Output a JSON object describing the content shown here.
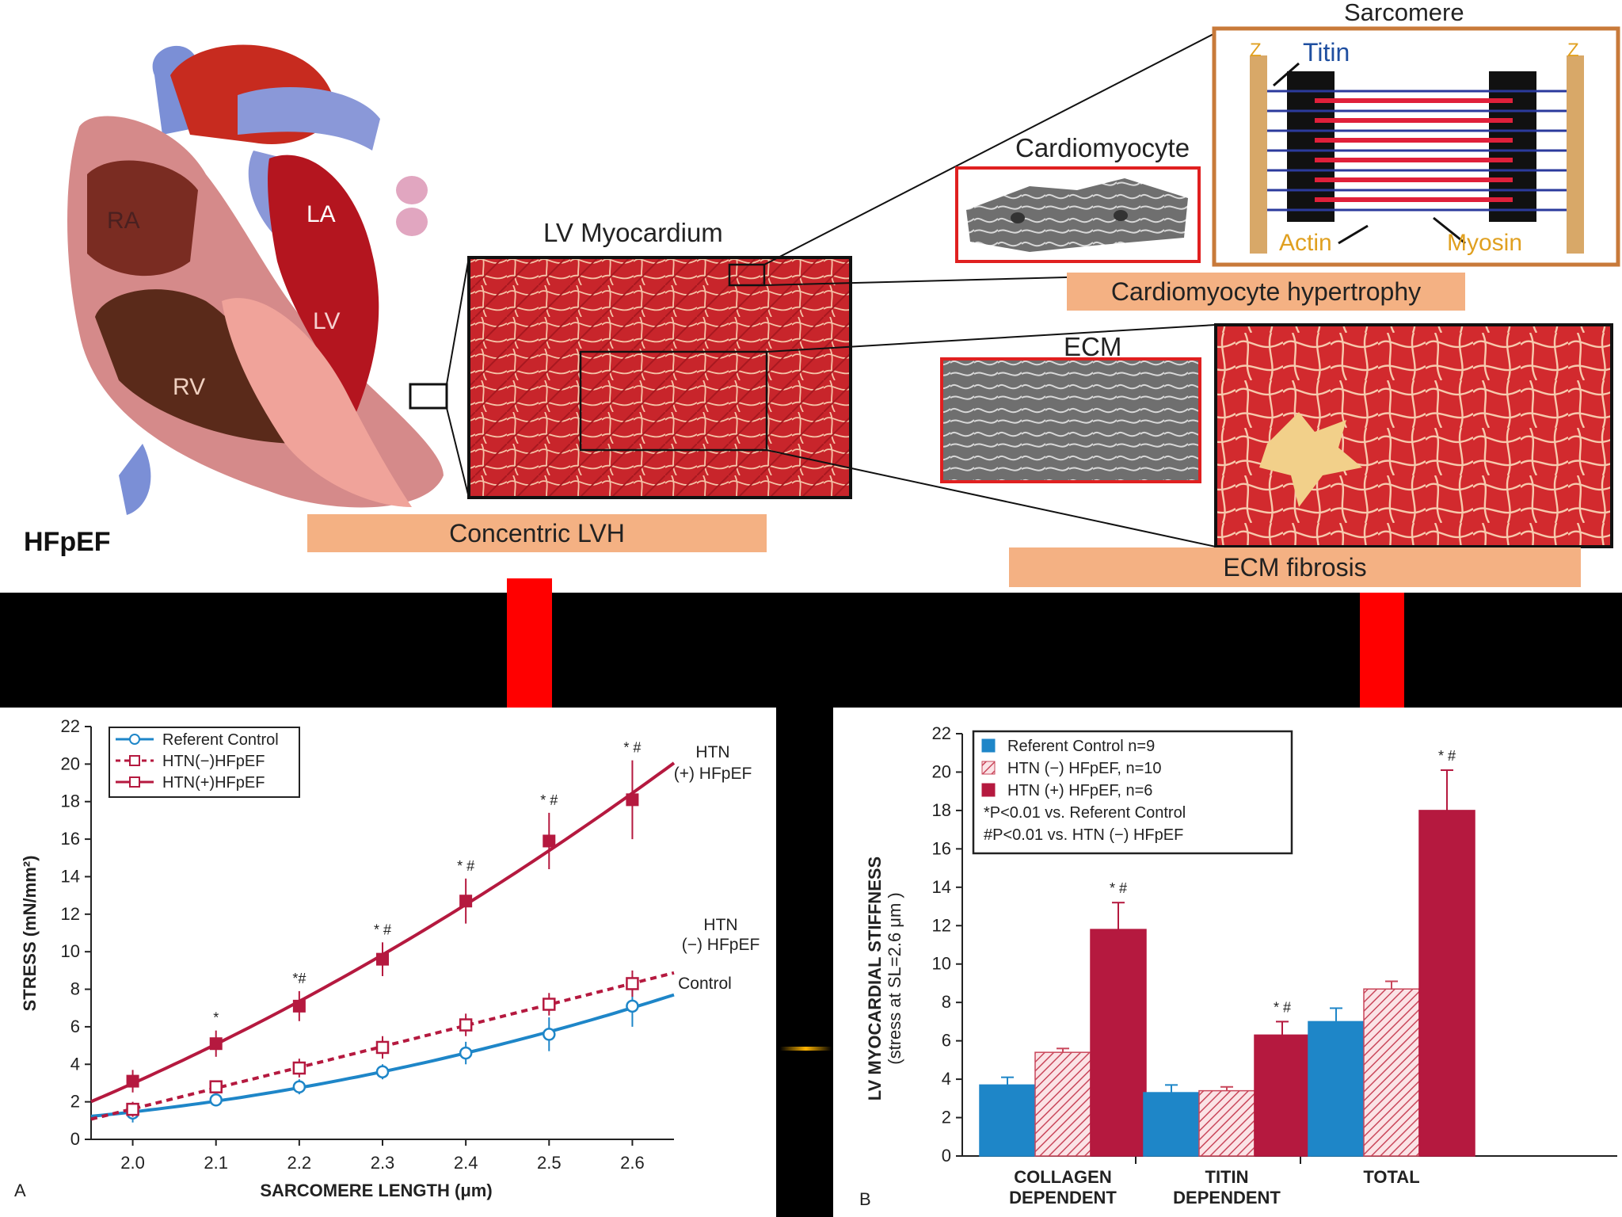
{
  "top": {
    "heart_labels": [
      "RA",
      "LA",
      "LV",
      "RV"
    ],
    "hfpef": "HFpEF",
    "lv_myocardium": "LV Myocardium",
    "concentric_lvh": "Concentric LVH",
    "cardiomyocyte": "Cardiomyocyte",
    "ecm": "ECM",
    "cardiomyocyte_hypertrophy": "Cardiomyocyte hypertrophy",
    "ecm_fibrosis": "ECM fibrosis",
    "sarcomere": "Sarcomere",
    "titin": "Titin",
    "actin": "Actin",
    "myosin": "Myosin",
    "z": "Z"
  },
  "colors": {
    "red": "#b5193f",
    "blue": "#1e86c8",
    "orange_label": "#f4b183",
    "arrow": "#ff0000"
  },
  "chart_data": [
    {
      "type": "line",
      "panel_letter": "A",
      "xlabel": "SARCOMERE LENGTH (μm)",
      "ylabel": "STRESS (mN/mm²)",
      "xlim": [
        1.95,
        2.65
      ],
      "ylim": [
        0,
        22
      ],
      "x_ticks": [
        "2.0",
        "2.1",
        "2.2",
        "2.3",
        "2.4",
        "2.5",
        "2.6"
      ],
      "y_ticks": [
        "0",
        "2",
        "4",
        "6",
        "8",
        "10",
        "12",
        "14",
        "16",
        "18",
        "20",
        "22"
      ],
      "legend": [
        "Referent Control",
        "HTN(−)HFpEF",
        "HTN(+)HFpEF"
      ],
      "legend_position": "top-left",
      "curve_labels": [
        "HTN",
        "(+) HFpEF",
        "HTN",
        "(−) HFpEF",
        "Control"
      ],
      "x": [
        2.0,
        2.1,
        2.2,
        2.3,
        2.4,
        2.5,
        2.6
      ],
      "series": [
        {
          "name": "Referent Control",
          "values": [
            1.4,
            2.1,
            2.8,
            3.6,
            4.6,
            5.6,
            7.1
          ],
          "errors": [
            0.5,
            0.3,
            0.4,
            0.4,
            0.6,
            0.9,
            1.1
          ]
        },
        {
          "name": "HTN(−)HFpEF",
          "values": [
            1.6,
            2.8,
            3.8,
            4.9,
            6.1,
            7.2,
            8.3
          ],
          "errors": [
            0.4,
            0.3,
            0.5,
            0.6,
            0.6,
            0.6,
            0.7
          ]
        },
        {
          "name": "HTN(+)HFpEF",
          "values": [
            3.1,
            5.1,
            7.1,
            9.6,
            12.7,
            15.9,
            18.1
          ],
          "errors": [
            0.6,
            0.7,
            0.8,
            0.9,
            1.2,
            1.5,
            2.1
          ]
        }
      ],
      "significance": [
        "*",
        "*#",
        "* #",
        "* #",
        "* #",
        "* #"
      ]
    },
    {
      "type": "bar",
      "panel_letter": "B",
      "ylabel": "LV MYOCARDIAL STIFFNESS",
      "ylabel2": "(stress at SL=2.6 μm )",
      "ylim": [
        0,
        22
      ],
      "y_ticks": [
        "0",
        "2",
        "4",
        "6",
        "8",
        "10",
        "12",
        "14",
        "16",
        "18",
        "20",
        "22"
      ],
      "categories": [
        "COLLAGEN DEPENDENT",
        "TITIN DEPENDENT",
        "TOTAL"
      ],
      "category_lines": [
        [
          "COLLAGEN",
          "DEPENDENT"
        ],
        [
          "TITIN",
          "DEPENDENT"
        ],
        [
          "TOTAL"
        ]
      ],
      "legend": [
        "Referent Control n=9",
        "HTN (−) HFpEF, n=10",
        "HTN (+) HFpEF, n=6",
        "*P<0.01 vs. Referent Control",
        "#P<0.01 vs. HTN (−) HFpEF"
      ],
      "legend_position": "top-left",
      "series": [
        {
          "name": "Referent Control n=9",
          "values": [
            3.7,
            3.3,
            7.0
          ],
          "errors": [
            0.4,
            0.4,
            0.7
          ]
        },
        {
          "name": "HTN (−) HFpEF, n=10",
          "values": [
            5.4,
            3.4,
            8.7
          ],
          "errors": [
            0.2,
            0.2,
            0.4
          ]
        },
        {
          "name": "HTN (+) HFpEF, n=6",
          "values": [
            11.8,
            6.3,
            18.0
          ],
          "errors": [
            1.4,
            0.7,
            2.1
          ]
        }
      ],
      "significance": [
        "* #",
        "* #",
        "* #"
      ]
    }
  ]
}
